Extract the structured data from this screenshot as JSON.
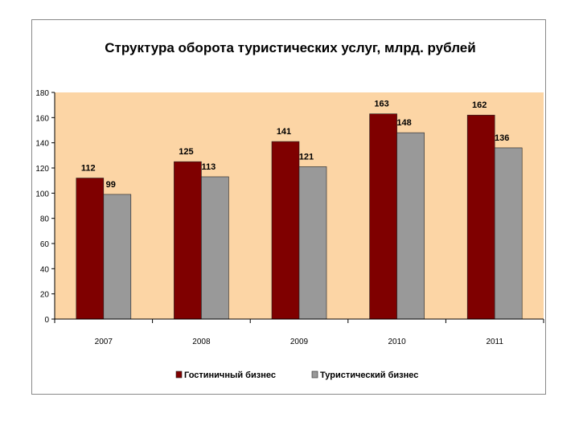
{
  "chart_data": {
    "type": "bar",
    "title": "Структура оборота туристических услуг, млрд. рублей",
    "categories": [
      "2007",
      "2008",
      "2009",
      "2010",
      "2011"
    ],
    "series": [
      {
        "name": "Гостиничный бизнес",
        "values": [
          112,
          125,
          141,
          163,
          162
        ],
        "data_labels": [
          "112",
          "125",
          "141",
          "163",
          "162"
        ],
        "color": "#7f0000"
      },
      {
        "name": "Туристический бизнес",
        "values": [
          99,
          113,
          121,
          148,
          136
        ],
        "data_labels": [
          "99",
          "113",
          "121",
          "148",
          "136"
        ],
        "color": "#999999"
      }
    ],
    "ylim": [
      0,
      180
    ],
    "yticks": [
      "0",
      "20",
      "40",
      "60",
      "80",
      "100",
      "120",
      "140",
      "160",
      "180"
    ],
    "plot_background": "#fcd5a5",
    "grid": false,
    "legend_position": "bottom"
  }
}
